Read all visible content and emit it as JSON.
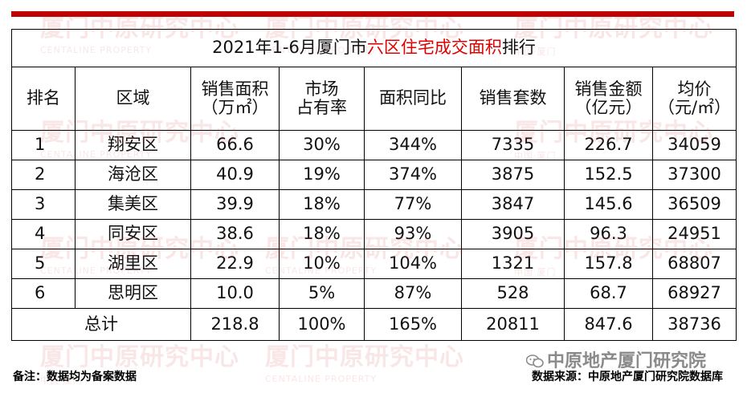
{
  "title": {
    "prefix": "2021年1-6月厦门市",
    "highlight": "六区住宅成交面积",
    "suffix": "排行"
  },
  "headers": {
    "rank": "排名",
    "region": "区域",
    "area_l1": "销售面积",
    "area_l2": "（万㎡）",
    "share_l1": "市场",
    "share_l2": "占有率",
    "yoy": "面积同比",
    "units": "销售套数",
    "amount_l1": "销售金额",
    "amount_l2": "（亿元）",
    "price_l1": "均价",
    "price_l2": "（元/㎡）"
  },
  "rows": [
    {
      "rank": "1",
      "region": "翔安区",
      "area": "66.6",
      "share": "30%",
      "yoy": "344%",
      "units": "7335",
      "amount": "226.7",
      "price": "34059"
    },
    {
      "rank": "2",
      "region": "海沧区",
      "area": "40.9",
      "share": "19%",
      "yoy": "374%",
      "units": "3875",
      "amount": "152.5",
      "price": "37300"
    },
    {
      "rank": "3",
      "region": "集美区",
      "area": "39.9",
      "share": "18%",
      "yoy": "77%",
      "units": "3847",
      "amount": "145.6",
      "price": "36509"
    },
    {
      "rank": "4",
      "region": "同安区",
      "area": "38.6",
      "share": "18%",
      "yoy": "93%",
      "units": "3905",
      "amount": "96.3",
      "price": "24951"
    },
    {
      "rank": "5",
      "region": "湖里区",
      "area": "22.9",
      "share": "10%",
      "yoy": "104%",
      "units": "1321",
      "amount": "157.8",
      "price": "68807"
    },
    {
      "rank": "6",
      "region": "思明区",
      "area": "10.0",
      "share": "5%",
      "yoy": "87%",
      "units": "528",
      "amount": "68.7",
      "price": "68927"
    }
  ],
  "total": {
    "label": "总计",
    "area": "218.8",
    "share": "100%",
    "yoy": "165%",
    "units": "20811",
    "amount": "847.6",
    "price": "38736"
  },
  "footer": {
    "note": "备注：数据均为备案数据",
    "source": "数据来源：中原地产厦门研究院数据库"
  },
  "brand": "中原地产厦门研究院",
  "watermark": {
    "text": "厦门中原研究中心",
    "sub": "CENTALINE PROPERTY",
    "sub2": "中国·厦门"
  },
  "colors": {
    "accent": "#c00000",
    "highlight": "#e00000"
  }
}
